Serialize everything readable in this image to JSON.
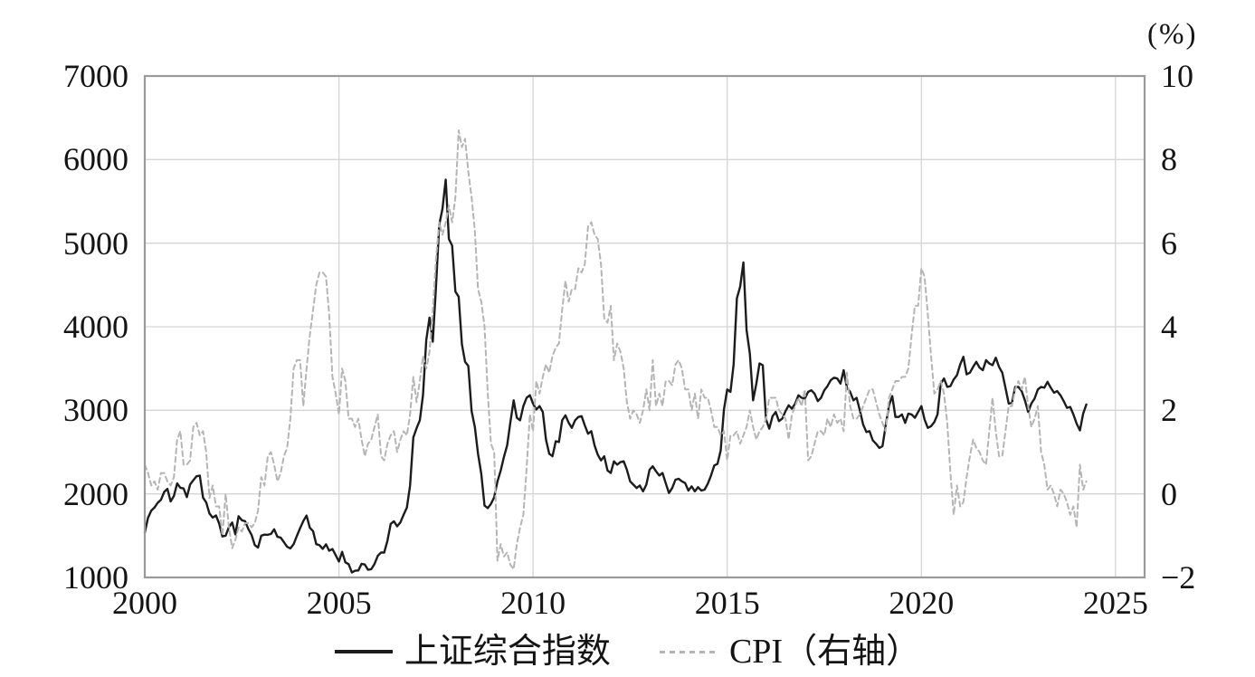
{
  "chart_data": {
    "type": "line",
    "title": "",
    "unit_label_right": "(%)",
    "grid": true,
    "legend_position": "bottom-center",
    "x_domain": [
      2000,
      2025.75
    ],
    "x_tick_values": [
      2000,
      2005,
      2010,
      2015,
      2020,
      2025
    ],
    "x_tick_labels": [
      "2000",
      "2005",
      "2010",
      "2015",
      "2020",
      "2025"
    ],
    "left_axis": {
      "range": [
        1000,
        7000
      ],
      "tick_values": [
        7000,
        6000,
        5000,
        4000,
        3000,
        2000,
        1000
      ],
      "tick_labels": [
        "7000",
        "6000",
        "5000",
        "4000",
        "3000",
        "2000",
        "1000"
      ]
    },
    "right_axis": {
      "range": [
        -2,
        10
      ],
      "tick_values": [
        10,
        8,
        6,
        4,
        2,
        0,
        -2
      ],
      "tick_labels": [
        "10",
        "8",
        "6",
        "4",
        "2",
        "0",
        "−2"
      ]
    },
    "colors": {
      "sse_line": "#1c1c1c",
      "cpi_line": "#b5b5b5",
      "gridline": "#d5d5d5",
      "border": "#9a9a9a",
      "text": "#141414"
    },
    "series": [
      {
        "name": "上证综合指数",
        "axis": "left",
        "style": "solid",
        "color": "#1c1c1c",
        "start_year": 2000,
        "start_month": 1,
        "frequency": "monthly",
        "values": [
          1535,
          1715,
          1800,
          1836,
          1894,
          1929,
          2023,
          2060,
          1910,
          1975,
          2125,
          2073,
          2065,
          1962,
          2112,
          2163,
          2211,
          2218,
          1955,
          1898,
          1765,
          1716,
          1742,
          1646,
          1491,
          1500,
          1603,
          1657,
          1515,
          1732,
          1684,
          1673,
          1582,
          1510,
          1387,
          1357,
          1499,
          1512,
          1510,
          1521,
          1576,
          1486,
          1476,
          1422,
          1367,
          1348,
          1397,
          1497,
          1590,
          1675,
          1741,
          1595,
          1555,
          1399,
          1386,
          1342,
          1396,
          1320,
          1340,
          1266,
          1191,
          1306,
          1181,
          1159,
          1060,
          1080,
          1083,
          1162,
          1155,
          1092,
          1099,
          1161,
          1258,
          1299,
          1298,
          1440,
          1641,
          1672,
          1612,
          1658,
          1752,
          1837,
          2099,
          2675,
          2786,
          2881,
          3184,
          3841,
          4109,
          3821,
          4471,
          5218,
          5410,
          5760,
          5050,
          4970,
          4420,
          4360,
          3790,
          3580,
          3530,
          2990,
          2800,
          2480,
          2240,
          1860,
          1830,
          1880,
          1960,
          2150,
          2280,
          2440,
          2580,
          2860,
          3120,
          2910,
          2880,
          3050,
          3150,
          3180,
          3080,
          3010,
          3050,
          2980,
          2650,
          2480,
          2450,
          2630,
          2620,
          2880,
          2940,
          2850,
          2790,
          2880,
          2920,
          2930,
          2820,
          2720,
          2750,
          2580,
          2470,
          2400,
          2450,
          2280,
          2250,
          2390,
          2350,
          2380,
          2390,
          2290,
          2150,
          2110,
          2070,
          2100,
          2030,
          2110,
          2290,
          2330,
          2270,
          2220,
          2250,
          2130,
          2010,
          2070,
          2170,
          2180,
          2150,
          2130,
          2040,
          2090,
          2030,
          2080,
          2040,
          2050,
          2120,
          2220,
          2340,
          2360,
          2520,
          3010,
          3250,
          3220,
          3550,
          4340,
          4480,
          4770,
          3960,
          3680,
          3120,
          3320,
          3560,
          3540,
          2890,
          2780,
          2930,
          2980,
          2870,
          2900,
          2990,
          3060,
          3020,
          3080,
          3180,
          3150,
          3140,
          3220,
          3240,
          3200,
          3110,
          3150,
          3240,
          3290,
          3360,
          3390,
          3380,
          3320,
          3480,
          3270,
          3220,
          3120,
          3150,
          3000,
          2830,
          2740,
          2750,
          2640,
          2600,
          2550,
          2570,
          2820,
          3060,
          3170,
          2920,
          2920,
          2950,
          2850,
          2960,
          2950,
          2910,
          2980,
          3050,
          2890,
          2790,
          2810,
          2860,
          2950,
          3320,
          3380,
          3280,
          3290,
          3370,
          3420,
          3550,
          3640,
          3430,
          3450,
          3520,
          3580,
          3510,
          3480,
          3600,
          3560,
          3540,
          3630,
          3520,
          3450,
          3270,
          3080,
          3090,
          3280,
          3280,
          3230,
          3120,
          2980,
          3080,
          3140,
          3250,
          3280,
          3270,
          3340,
          3270,
          3210,
          3230,
          3180,
          3110,
          3030,
          3040,
          2950,
          2840,
          2760,
          2960,
          3070
        ]
      },
      {
        "name": "CPI（右轴）",
        "axis": "right",
        "style": "dashed",
        "color": "#b5b5b5",
        "start_year": 2000,
        "start_month": 1,
        "frequency": "monthly",
        "values": [
          0.7,
          0.5,
          0.2,
          0.3,
          0.1,
          0.5,
          0.5,
          0.3,
          0.2,
          0.4,
          1.3,
          1.5,
          0.7,
          0.7,
          0.8,
          1.6,
          1.7,
          1.4,
          1.5,
          1.0,
          -0.1,
          0.2,
          -0.3,
          -0.3,
          -1.0,
          0.0,
          -0.8,
          -1.3,
          -1.1,
          -0.8,
          -0.9,
          -0.7,
          -0.7,
          -0.8,
          -0.7,
          -0.4,
          0.4,
          0.2,
          0.9,
          1.0,
          0.7,
          0.3,
          0.5,
          0.9,
          1.1,
          1.8,
          3.0,
          3.2,
          3.2,
          2.1,
          3.0,
          3.8,
          4.4,
          5.0,
          5.3,
          5.3,
          5.2,
          4.3,
          2.8,
          2.4,
          1.9,
          3.0,
          2.7,
          1.8,
          1.8,
          1.6,
          1.8,
          1.3,
          0.9,
          1.2,
          1.3,
          1.6,
          1.9,
          0.9,
          0.8,
          1.2,
          1.4,
          1.5,
          1.0,
          1.3,
          1.5,
          1.4,
          1.9,
          2.8,
          2.2,
          2.7,
          3.3,
          3.0,
          3.4,
          4.4,
          5.6,
          6.5,
          6.2,
          6.5,
          6.9,
          6.5,
          7.1,
          8.7,
          8.3,
          8.5,
          7.7,
          7.1,
          6.3,
          4.9,
          4.6,
          4.0,
          2.4,
          1.2,
          1.0,
          -1.6,
          -1.2,
          -1.5,
          -1.4,
          -1.7,
          -1.8,
          -1.2,
          -0.8,
          -0.5,
          0.6,
          1.9,
          1.5,
          2.7,
          2.4,
          2.8,
          3.1,
          2.9,
          3.3,
          3.5,
          3.6,
          4.4,
          5.1,
          4.6,
          4.9,
          4.9,
          5.4,
          5.3,
          5.5,
          6.4,
          6.5,
          6.2,
          6.1,
          5.5,
          4.2,
          4.1,
          4.5,
          3.2,
          3.6,
          3.4,
          3.0,
          2.2,
          1.8,
          2.0,
          1.9,
          1.7,
          2.0,
          2.5,
          2.0,
          3.2,
          2.1,
          2.4,
          2.1,
          2.7,
          2.7,
          2.6,
          3.1,
          3.2,
          3.0,
          2.5,
          2.5,
          2.0,
          2.4,
          1.8,
          2.5,
          2.3,
          2.3,
          2.0,
          1.6,
          1.6,
          1.4,
          1.5,
          0.8,
          1.4,
          1.4,
          1.5,
          1.2,
          1.4,
          1.6,
          2.0,
          1.6,
          1.3,
          1.5,
          1.6,
          1.8,
          2.3,
          2.3,
          2.3,
          2.0,
          1.9,
          1.8,
          1.3,
          1.9,
          2.1,
          2.3,
          2.1,
          2.5,
          0.8,
          0.9,
          1.2,
          1.5,
          1.5,
          1.4,
          1.8,
          1.6,
          1.9,
          1.7,
          1.8,
          1.5,
          2.9,
          2.1,
          1.8,
          1.8,
          1.9,
          2.1,
          2.3,
          2.5,
          2.5,
          2.2,
          1.9,
          1.7,
          1.5,
          2.3,
          2.5,
          2.7,
          2.7,
          2.8,
          2.8,
          3.0,
          3.8,
          4.5,
          4.5,
          5.4,
          5.2,
          4.3,
          3.3,
          2.4,
          2.5,
          2.7,
          2.4,
          1.7,
          0.5,
          -0.5,
          0.2,
          -0.3,
          -0.2,
          0.4,
          0.9,
          1.3,
          1.1,
          1.0,
          0.8,
          0.7,
          1.5,
          2.3,
          1.5,
          0.9,
          0.9,
          1.5,
          2.1,
          2.1,
          2.5,
          2.7,
          2.5,
          2.8,
          2.1,
          1.6,
          1.8,
          2.1,
          1.0,
          0.7,
          0.1,
          0.2,
          0.0,
          -0.3,
          0.1,
          0.0,
          -0.2,
          -0.5,
          -0.3,
          -0.8,
          0.7,
          0.1,
          0.3
        ]
      }
    ]
  }
}
